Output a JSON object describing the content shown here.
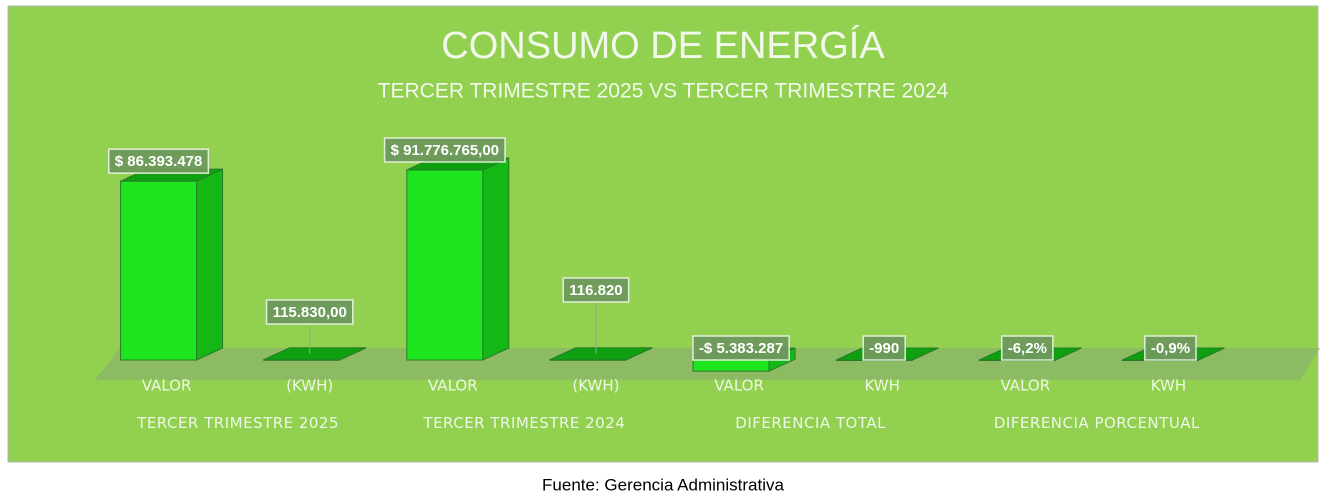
{
  "chart_data": {
    "type": "bar3d",
    "title": "CONSUMO DE ENERGÍA",
    "subtitle": "TERCER TRIMESTRE 2025 VS TERCER TRIMESTRE 2024",
    "categories": [
      "VALOR",
      "(KWH)",
      "VALOR",
      "(KWH)",
      "VALOR",
      "KWH",
      "VALOR",
      "KWH"
    ],
    "groups": [
      "TERCER TRIMESTRE 2025",
      "TERCER TRIMESTRE 2024",
      "DIFERENCIA TOTAL",
      "DIFERENCIA PORCENTUAL"
    ],
    "values": [
      86393478,
      115830,
      91776765,
      116820,
      -5383287,
      -990,
      -6.2,
      -0.9
    ],
    "value_labels": [
      "$ 86.393.478",
      "115.830,00",
      "$ 91.776.765,00",
      "116.820",
      "-$ 5.383.287",
      "-990",
      "-6,2%",
      "-0,9%"
    ],
    "color": "#1ee61e",
    "source": "Fuente: Gerencia Administrativa"
  }
}
